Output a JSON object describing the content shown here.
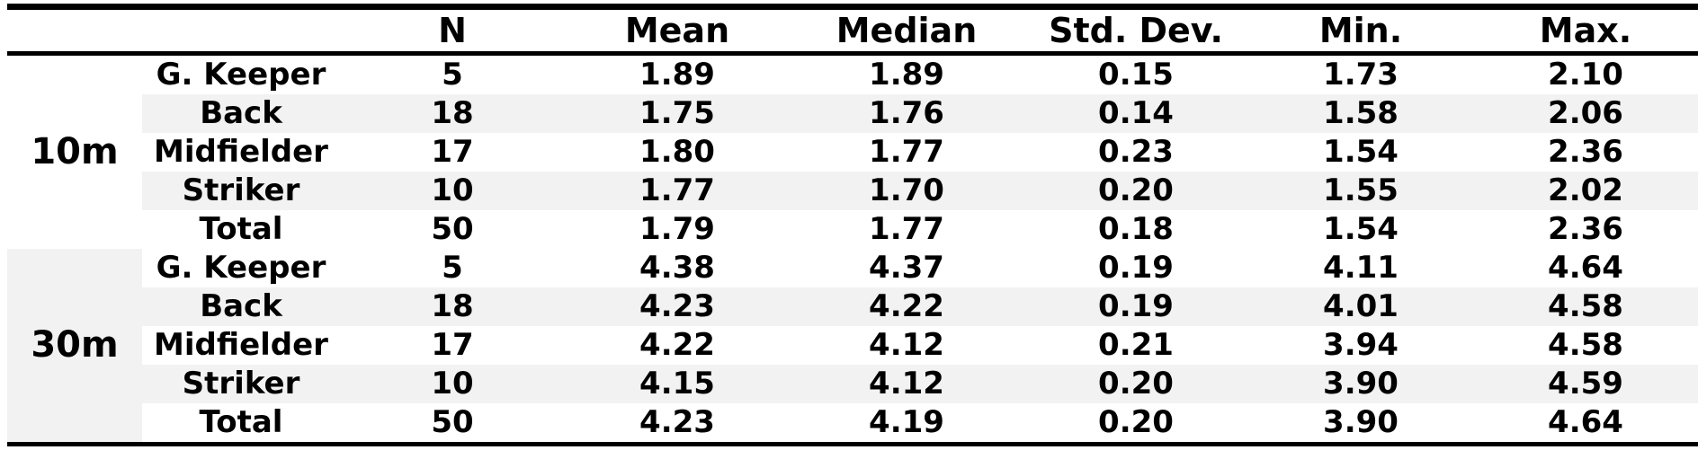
{
  "table": {
    "headers": [
      "",
      "",
      "N",
      "Mean",
      "Median",
      "Std. Dev.",
      "Min.",
      "Max."
    ],
    "groups": [
      {
        "label": "10m",
        "rows": [
          {
            "position": "G. Keeper",
            "n": "5",
            "mean": "1.89",
            "median": "1.89",
            "sd": "0.15",
            "min": "1.73",
            "max": "2.10"
          },
          {
            "position": "Back",
            "n": "18",
            "mean": "1.75",
            "median": "1.76",
            "sd": "0.14",
            "min": "1.58",
            "max": "2.06"
          },
          {
            "position": "Midfielder",
            "n": "17",
            "mean": "1.80",
            "median": "1.77",
            "sd": "0.23",
            "min": "1.54",
            "max": "2.36"
          },
          {
            "position": "Striker",
            "n": "10",
            "mean": "1.77",
            "median": "1.70",
            "sd": "0.20",
            "min": "1.55",
            "max": "2.02"
          },
          {
            "position": "Total",
            "n": "50",
            "mean": "1.79",
            "median": "1.77",
            "sd": "0.18",
            "min": "1.54",
            "max": "2.36"
          }
        ]
      },
      {
        "label": "30m",
        "rows": [
          {
            "position": "G. Keeper",
            "n": "5",
            "mean": "4.38",
            "median": "4.37",
            "sd": "0.19",
            "min": "4.11",
            "max": "4.64"
          },
          {
            "position": "Back",
            "n": "18",
            "mean": "4.23",
            "median": "4.22",
            "sd": "0.19",
            "min": "4.01",
            "max": "4.58"
          },
          {
            "position": "Midfielder",
            "n": "17",
            "mean": "4.22",
            "median": "4.12",
            "sd": "0.21",
            "min": "3.94",
            "max": "4.58"
          },
          {
            "position": "Striker",
            "n": "10",
            "mean": "4.15",
            "median": "4.12",
            "sd": "0.20",
            "min": "3.90",
            "max": "4.59"
          },
          {
            "position": "Total",
            "n": "50",
            "mean": "4.23",
            "median": "4.19",
            "sd": "0.20",
            "min": "3.90",
            "max": "4.64"
          }
        ]
      }
    ]
  }
}
